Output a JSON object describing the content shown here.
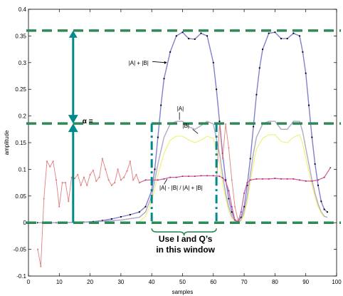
{
  "chart_data": {
    "type": "line",
    "xlabel": "samples",
    "ylabel": "amplitude",
    "xlim": [
      0,
      100
    ],
    "ylim": [
      -0.1,
      0.4
    ],
    "xticks": [
      "0",
      "10",
      "20",
      "30",
      "40",
      "50",
      "60",
      "70",
      "80",
      "90",
      "100"
    ],
    "yticks": [
      "-0.1",
      "-0.05",
      "0",
      "0.05",
      "0.1",
      "0.15",
      "0.2",
      "0.25",
      "0.3",
      "0.35",
      "0.4"
    ],
    "annotations": {
      "sum": "|A| + |B|",
      "a": "|A|",
      "b": "|B|",
      "ratio": "|A| - |B| / |A| + |B|",
      "gap": "α =",
      "window_line1": "Use I and Q’s",
      "window_line2": "in this window"
    },
    "reference_lines": [
      0.36,
      0.186,
      0.0
    ],
    "window_x": [
      40,
      61
    ],
    "colors": {
      "sum": "#8080d0",
      "sum_markers": "#000000",
      "a": "#b0a8c8",
      "b": "#f0f070",
      "ratio": "#d06090",
      "ratio_markers": "#a020a0",
      "noise": "#e08080",
      "guide": "#2e8b57",
      "arrow": "#008b8b"
    },
    "series": [
      {
        "key": "sum",
        "x": [
          3,
          6,
          9,
          12,
          15,
          18,
          21,
          24,
          27,
          30,
          33,
          36,
          38,
          40,
          41,
          42,
          43,
          44,
          46,
          48,
          50,
          52,
          54,
          56,
          58,
          60,
          61,
          62,
          63,
          64,
          65,
          66,
          67,
          68,
          69,
          70,
          71,
          72,
          73,
          74,
          75,
          76,
          78,
          80,
          82,
          84,
          86,
          88,
          89,
          90,
          91,
          92,
          93,
          94,
          95,
          96,
          97
        ],
        "y": [
          0.0,
          0.0,
          0.0,
          0.0,
          0.001,
          0.001,
          0.002,
          0.004,
          0.007,
          0.011,
          0.015,
          0.02,
          0.03,
          0.06,
          0.1,
          0.16,
          0.22,
          0.27,
          0.32,
          0.35,
          0.357,
          0.345,
          0.344,
          0.355,
          0.35,
          0.3,
          0.25,
          0.19,
          0.13,
          0.08,
          0.045,
          0.02,
          0.005,
          0.002,
          0.01,
          0.03,
          0.07,
          0.12,
          0.18,
          0.24,
          0.29,
          0.325,
          0.355,
          0.357,
          0.345,
          0.345,
          0.355,
          0.35,
          0.32,
          0.28,
          0.22,
          0.16,
          0.11,
          0.07,
          0.04,
          0.025,
          0.02
        ]
      },
      {
        "key": "a",
        "x": [
          3,
          10,
          20,
          30,
          36,
          38,
          40,
          42,
          44,
          46,
          48,
          50,
          52,
          54,
          56,
          58,
          60,
          62,
          63,
          64,
          65,
          66,
          67,
          68,
          69,
          70,
          71,
          72,
          73,
          74,
          76,
          78,
          80,
          82,
          84,
          86,
          88,
          89,
          90,
          91,
          92,
          93,
          94,
          95,
          96,
          97
        ],
        "y": [
          0.0,
          0.0,
          0.001,
          0.005,
          0.01,
          0.02,
          0.05,
          0.11,
          0.16,
          0.185,
          0.19,
          0.19,
          0.18,
          0.175,
          0.182,
          0.19,
          0.185,
          0.13,
          0.09,
          0.055,
          0.03,
          0.012,
          0.004,
          0.001,
          0.005,
          0.02,
          0.05,
          0.09,
          0.13,
          0.16,
          0.185,
          0.19,
          0.19,
          0.175,
          0.175,
          0.19,
          0.19,
          0.17,
          0.14,
          0.11,
          0.08,
          0.055,
          0.035,
          0.02,
          0.012,
          0.01
        ]
      },
      {
        "key": "b",
        "x": [
          36,
          38,
          40,
          42,
          44,
          46,
          48,
          50,
          52,
          54,
          56,
          58,
          60,
          62,
          63,
          64,
          65,
          66,
          67,
          68,
          69,
          70,
          71,
          72,
          73,
          74,
          76,
          78,
          80,
          82,
          84,
          86,
          88,
          89,
          90,
          91,
          92,
          93,
          94,
          95,
          96
        ],
        "y": [
          0.002,
          0.012,
          0.04,
          0.09,
          0.13,
          0.155,
          0.162,
          0.162,
          0.155,
          0.15,
          0.155,
          0.162,
          0.158,
          0.11,
          0.075,
          0.045,
          0.022,
          0.008,
          0.002,
          0.0,
          0.003,
          0.015,
          0.04,
          0.075,
          0.11,
          0.138,
          0.158,
          0.165,
          0.165,
          0.152,
          0.15,
          0.16,
          0.165,
          0.148,
          0.122,
          0.095,
          0.07,
          0.048,
          0.03,
          0.018,
          0.01
        ]
      },
      {
        "key": "ratio",
        "x": [
          36,
          38,
          40,
          42,
          44,
          46,
          48,
          50,
          52,
          54,
          56,
          58,
          60,
          62,
          63,
          64,
          65,
          66,
          67,
          68,
          69,
          70,
          71,
          72,
          74,
          76,
          78,
          80,
          82,
          84,
          86,
          88,
          90,
          92,
          94,
          96,
          98
        ],
        "y": [
          0.075,
          0.08,
          0.08,
          0.08,
          0.082,
          0.085,
          0.085,
          0.087,
          0.087,
          0.087,
          0.088,
          0.088,
          0.088,
          0.087,
          0.084,
          0.078,
          0.06,
          0.03,
          0.005,
          0.002,
          0.02,
          0.055,
          0.075,
          0.08,
          0.082,
          0.082,
          0.082,
          0.083,
          0.082,
          0.082,
          0.082,
          0.08,
          0.078,
          0.078,
          0.08,
          0.085,
          0.103
        ]
      },
      {
        "key": "noise",
        "x": [
          3,
          4,
          5,
          6,
          7,
          8,
          9,
          10,
          11,
          12,
          13,
          14,
          15,
          16,
          17,
          18,
          19,
          20,
          21,
          22,
          23,
          24,
          25,
          26,
          27,
          28,
          29,
          30,
          31,
          32,
          33,
          34,
          35,
          36
        ],
        "y": [
          -0.05,
          -0.082,
          0.045,
          0.115,
          0.105,
          0.115,
          0.08,
          0.03,
          0.075,
          0.075,
          0.04,
          0.085,
          0.083,
          0.09,
          0.07,
          0.085,
          0.07,
          0.09,
          0.098,
          0.078,
          0.085,
          0.12,
          0.1,
          0.08,
          0.07,
          0.075,
          0.1,
          0.08,
          0.085,
          0.097,
          0.115,
          0.08,
          0.09,
          0.075
        ]
      },
      {
        "key": "spike",
        "x": [
          61,
          62,
          63,
          64,
          65,
          66,
          67,
          68
        ],
        "y": [
          0.07,
          0.185,
          0.12,
          0.185,
          0.14,
          0.08,
          0.03,
          0.005
        ]
      }
    ]
  }
}
